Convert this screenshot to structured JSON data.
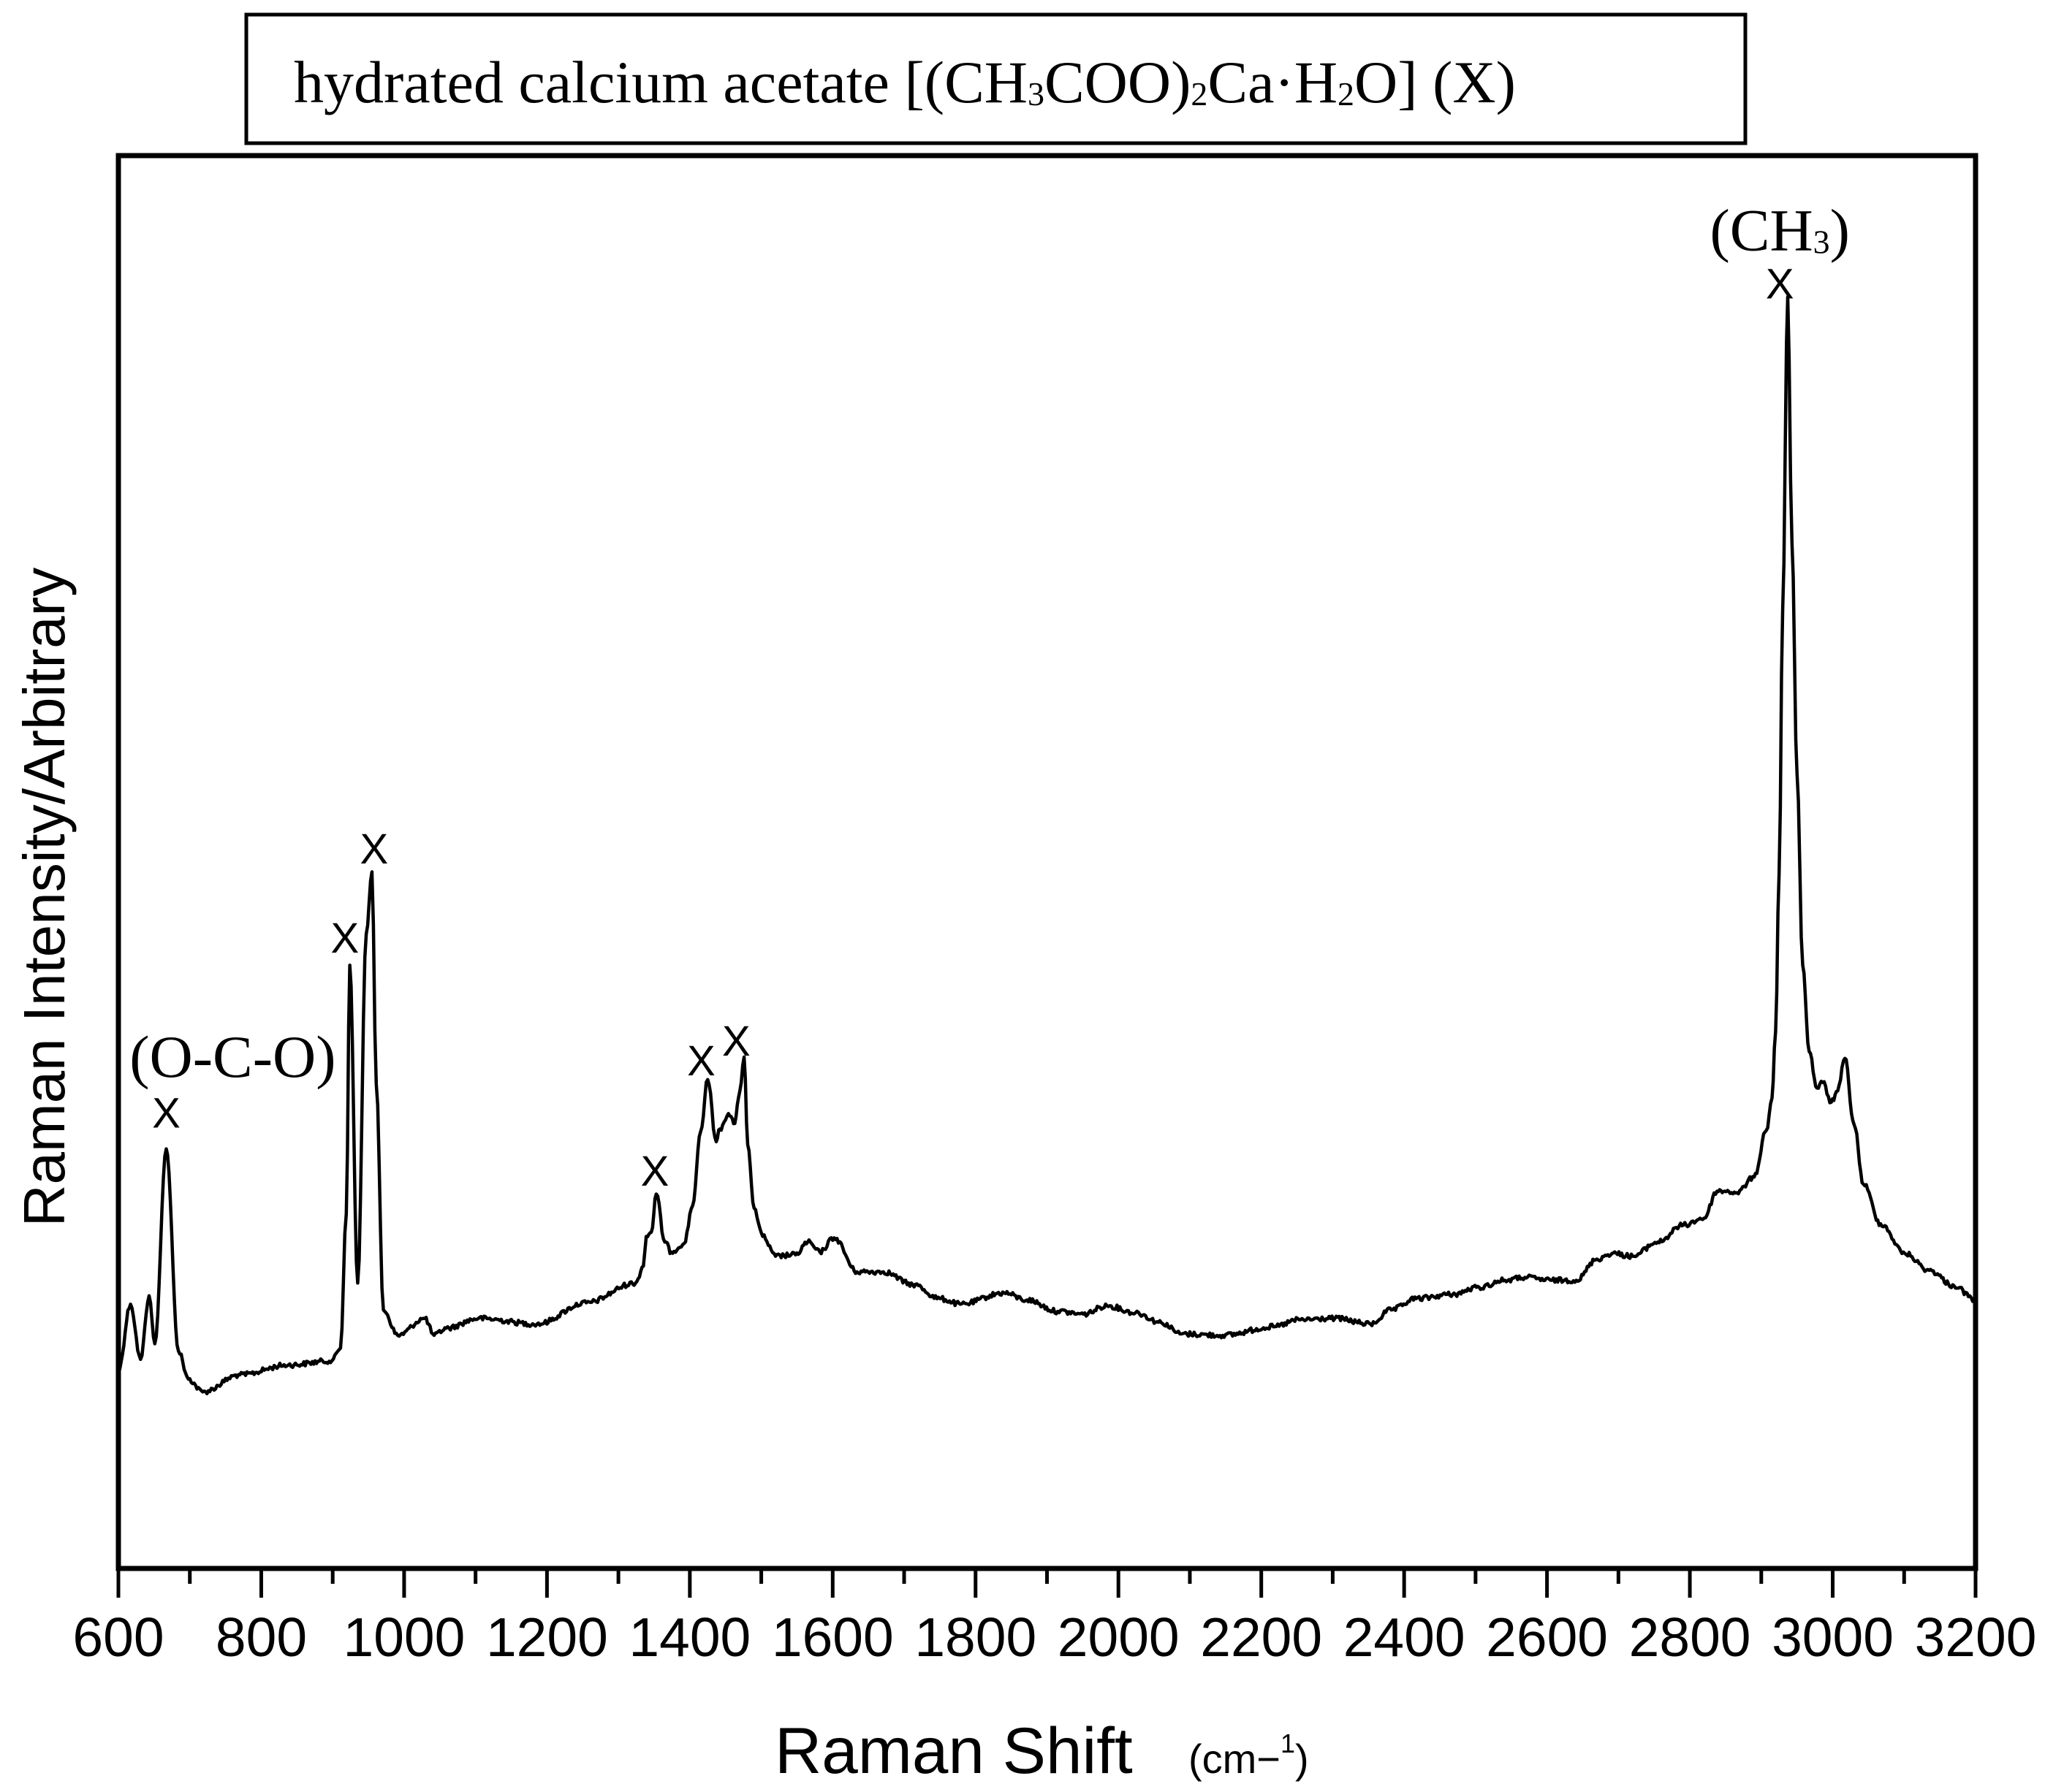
{
  "title": {
    "parts": [
      {
        "text": "hydrated calcium acetate [(CH",
        "sub": false
      },
      {
        "text": "3",
        "sub": true
      },
      {
        "text": "COO)",
        "sub": false
      },
      {
        "text": "2",
        "sub": true
      },
      {
        "text": "Ca·H",
        "sub": false
      },
      {
        "text": "2",
        "sub": true
      },
      {
        "text": "O]  (X)",
        "sub": false
      }
    ]
  },
  "axes": {
    "xlabel": "Raman Shift",
    "xunit_prefix": "(cm−",
    "xunit_sup": "1",
    "xunit_suffix": ")",
    "ylabel": "Raman Intensity/Arbitrary"
  },
  "chart_data": {
    "type": "line",
    "title": "hydrated calcium acetate [(CH3COO)2Ca·H2O]  (X)",
    "xlabel": "Raman Shift (cm−1)",
    "ylabel": "Raman Intensity/Arbitrary",
    "xlim": [
      600,
      3200
    ],
    "ylim": [
      0,
      100
    ],
    "grid": false,
    "legend": null,
    "xticks": [
      600,
      800,
      1000,
      1200,
      1400,
      1600,
      1800,
      2000,
      2200,
      2400,
      2600,
      2800,
      3000,
      3200
    ],
    "xminor_step": 100,
    "yticks": [],
    "series": [
      {
        "name": "hydrated calcium acetate",
        "color": "#000000",
        "x": [
          600,
          617,
          631,
          643,
          651,
          667,
          684,
          698,
          718,
          770,
          838,
          899,
          911,
          919,
          924,
          935,
          947,
          955,
          961,
          971,
          991,
          1029,
          1042,
          1059,
          1104,
          1186,
          1255,
          1324,
          1335,
          1339,
          1346,
          1353,
          1365,
          1374,
          1392,
          1404,
          1415,
          1425,
          1437,
          1442,
          1454,
          1463,
          1470,
          1476,
          1481,
          1490,
          1502,
          1520,
          1548,
          1565,
          1582,
          1602,
          1634,
          1671,
          1712,
          1750,
          1779,
          1840,
          1872,
          1915,
          1951,
          1984,
          2024,
          2060,
          2088,
          2146,
          2217,
          2253,
          2303,
          2353,
          2382,
          2417,
          2468,
          2505,
          2541,
          2569,
          2605,
          2641,
          2670,
          2691,
          2720,
          2755,
          2791,
          2820,
          2838,
          2849,
          2866,
          2890,
          2907,
          2915,
          2920,
          2925,
          2930,
          2937,
          2943,
          2950,
          2958,
          2967,
          2978,
          2986,
          2998,
          3007,
          3017,
          3030,
          3043,
          3067,
          3101,
          3135,
          3170,
          3200
        ],
        "y": [
          14.0,
          18.7,
          14.8,
          19.3,
          15.9,
          29.7,
          15.4,
          13.4,
          12.5,
          13.7,
          14.4,
          14.7,
          15.6,
          25.1,
          42.7,
          20.2,
          44.9,
          49.3,
          34.3,
          18.3,
          16.5,
          17.7,
          16.5,
          17.0,
          17.7,
          17.3,
          18.8,
          20.2,
          21.4,
          23.5,
          23.8,
          26.5,
          23.1,
          22.4,
          23.0,
          25.7,
          30.9,
          34.6,
          30.2,
          31.1,
          32.2,
          31.5,
          33.8,
          36.2,
          30.0,
          25.5,
          23.5,
          22.1,
          22.2,
          23.1,
          22.4,
          23.4,
          21.0,
          21.0,
          20.1,
          19.1,
          18.7,
          19.5,
          19.0,
          18.2,
          18.0,
          18.6,
          18.1,
          17.4,
          16.6,
          16.5,
          17.1,
          17.6,
          17.7,
          17.3,
          18.3,
          19.1,
          19.4,
          19.9,
          20.4,
          20.6,
          20.4,
          20.4,
          21.9,
          22.3,
          22.1,
          23.1,
          24.3,
          24.8,
          26.7,
          26.7,
          26.6,
          27.7,
          31.0,
          33.3,
          38.0,
          49.2,
          67.9,
          90.0,
          72.6,
          56.3,
          42.7,
          36.6,
          34.0,
          34.4,
          33.0,
          33.8,
          36.1,
          31.4,
          27.2,
          24.4,
          22.3,
          21.1,
          20.0,
          19.0
        ]
      }
    ],
    "peaks": [
      {
        "x": 667,
        "label": "x",
        "group": "O-C-O"
      },
      {
        "x": 924,
        "label": "x"
      },
      {
        "x": 955,
        "label": "x"
      },
      {
        "x": 1353,
        "label": "x"
      },
      {
        "x": 1425,
        "label": "x"
      },
      {
        "x": 1476,
        "label": "x"
      },
      {
        "x": 2937,
        "label": "x",
        "group": "CH3"
      }
    ],
    "annotations": {
      "markers": [
        {
          "text": "x",
          "x": 667,
          "y": 31.2
        },
        {
          "text": "x",
          "x": 917,
          "y": 43.6
        },
        {
          "text": "x",
          "x": 958,
          "y": 49.9
        },
        {
          "text": "x",
          "x": 1351,
          "y": 27.1
        },
        {
          "text": "x",
          "x": 1416,
          "y": 34.9
        },
        {
          "text": "x",
          "x": 1465,
          "y": 36.3
        },
        {
          "text": "x",
          "x": 2926,
          "y": 89.9
        }
      ],
      "labels": [
        {
          "name": "oco",
          "parts": [
            {
              "text": "(O-C-O)",
              "sub": false
            }
          ],
          "x": 760,
          "y": 34.8
        },
        {
          "name": "ch3",
          "parts": [
            {
              "text": "(CH",
              "sub": false
            },
            {
              "text": "3",
              "sub": true
            },
            {
              "text": ")",
              "sub": false
            }
          ],
          "x": 2926,
          "y": 93.3
        }
      ]
    }
  }
}
